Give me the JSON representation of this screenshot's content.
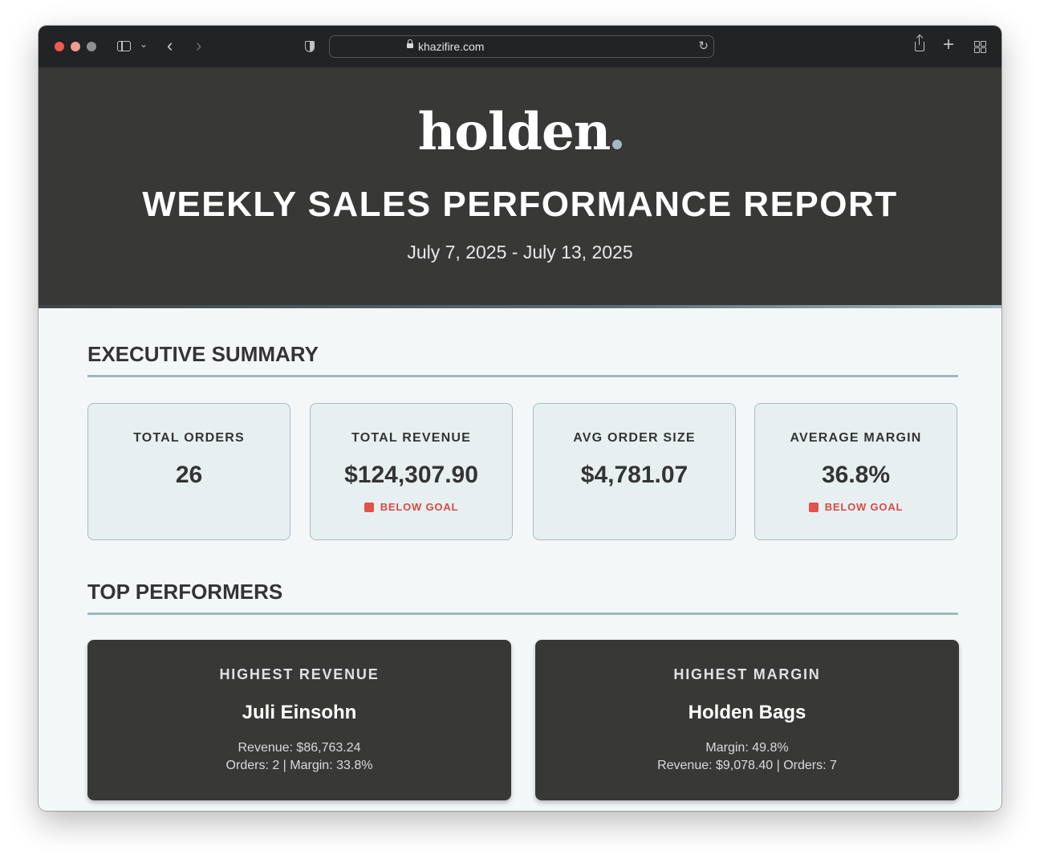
{
  "browser": {
    "url": "khazifire.com"
  },
  "header": {
    "logo_text": "holden",
    "title": "WEEKLY SALES PERFORMANCE REPORT",
    "date_range": "July 7, 2025 - July 13, 2025"
  },
  "executive_summary": {
    "title": "EXECUTIVE SUMMARY",
    "metrics": [
      {
        "label": "TOTAL ORDERS",
        "value": "26",
        "status": ""
      },
      {
        "label": "TOTAL REVENUE",
        "value": "$124,307.90",
        "status": "BELOW GOAL"
      },
      {
        "label": "AVG ORDER SIZE",
        "value": "$4,781.07",
        "status": ""
      },
      {
        "label": "AVERAGE MARGIN",
        "value": "36.8%",
        "status": "BELOW GOAL"
      }
    ]
  },
  "top_performers": {
    "title": "TOP PERFORMERS",
    "cards": [
      {
        "label": "HIGHEST REVENUE",
        "name": "Juli Einsohn",
        "line1": "Revenue: $86,763.24",
        "line2": "Orders: 2 | Margin: 33.8%"
      },
      {
        "label": "HIGHEST MARGIN",
        "name": "Holden Bags",
        "line1": "Margin: 49.8%",
        "line2": "Revenue: $9,078.40 | Orders: 7"
      }
    ]
  },
  "colors": {
    "header_bg": "#383937",
    "accent": "#a3bac2",
    "below_goal": "#d64b43",
    "card_bg": "#e8eff1"
  }
}
